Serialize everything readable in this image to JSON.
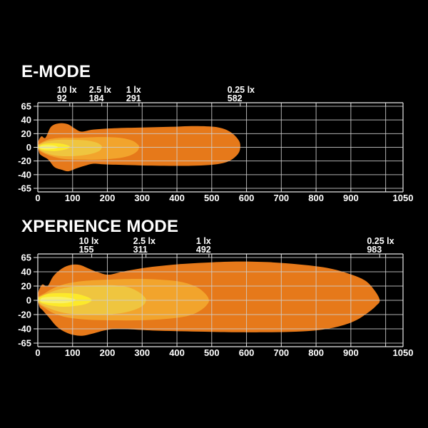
{
  "page": {
    "background": "#000000",
    "text_color": "#ffffff"
  },
  "chart_data": [
    {
      "type": "area",
      "title": "E-MODE",
      "xlabel": "",
      "ylabel": "",
      "xlim": [
        0,
        1050
      ],
      "x_tick_values": [
        0,
        100,
        200,
        300,
        400,
        500,
        600,
        700,
        800,
        900,
        1050
      ],
      "x_tick_labels": [
        "0",
        "100",
        "200",
        "300",
        "400",
        "500",
        "600",
        "700",
        "800",
        "900",
        "1050"
      ],
      "x_grid_values": [
        0,
        100,
        200,
        300,
        400,
        500,
        600,
        700,
        800,
        900,
        1000,
        1050
      ],
      "y_tick_values": [
        65,
        40,
        20,
        0,
        -20,
        -40,
        -65
      ],
      "y_tick_labels": [
        "65",
        "40",
        "20",
        "0",
        "-20",
        "-40",
        "-65"
      ],
      "grid": true,
      "grid_color": "#cfcfcf",
      "frame_color": "#e8e8e8",
      "annotations": [
        {
          "label": "10 lx",
          "value": "92",
          "m": 92
        },
        {
          "label": "2.5 lx",
          "value": "184",
          "m": 184
        },
        {
          "label": "1 lx",
          "value": "291",
          "m": 291
        },
        {
          "label": "0.25 lx",
          "value": "582",
          "m": 582
        }
      ],
      "contours": [
        {
          "lux": "0.25 lx",
          "end_m": 582,
          "color": "#E6791A",
          "points": [
            [
              0,
              6
            ],
            [
              10,
              16
            ],
            [
              22,
              14
            ],
            [
              38,
              30
            ],
            [
              60,
              35
            ],
            [
              85,
              34
            ],
            [
              105,
              28
            ],
            [
              125,
              23
            ],
            [
              160,
              26
            ],
            [
              220,
              28
            ],
            [
              300,
              29
            ],
            [
              380,
              30
            ],
            [
              460,
              31
            ],
            [
              520,
              29
            ],
            [
              555,
              22
            ],
            [
              578,
              10
            ],
            [
              582,
              0
            ],
            [
              575,
              -10
            ],
            [
              550,
              -20
            ],
            [
              510,
              -25
            ],
            [
              440,
              -27
            ],
            [
              350,
              -27
            ],
            [
              260,
              -26
            ],
            [
              195,
              -25
            ],
            [
              160,
              -24
            ],
            [
              135,
              -27
            ],
            [
              110,
              -31
            ],
            [
              88,
              -35
            ],
            [
              70,
              -33
            ],
            [
              48,
              -29
            ],
            [
              30,
              -18
            ],
            [
              14,
              -13
            ],
            [
              4,
              -8
            ]
          ]
        },
        {
          "lux": "1 lx",
          "end_m": 291,
          "color": "#F2A42C",
          "points": [
            [
              0,
              3
            ],
            [
              15,
              8
            ],
            [
              35,
              12
            ],
            [
              70,
              14
            ],
            [
              120,
              14
            ],
            [
              180,
              15
            ],
            [
              235,
              14
            ],
            [
              270,
              10
            ],
            [
              288,
              4
            ],
            [
              291,
              0
            ],
            [
              285,
              -6
            ],
            [
              265,
              -12
            ],
            [
              230,
              -16
            ],
            [
              175,
              -18
            ],
            [
              120,
              -18
            ],
            [
              75,
              -17
            ],
            [
              40,
              -13
            ],
            [
              15,
              -8
            ],
            [
              4,
              -4
            ]
          ]
        },
        {
          "lux": "2.5 lx",
          "end_m": 184,
          "color": "#EFC53F",
          "points": [
            [
              0,
              2
            ],
            [
              12,
              6
            ],
            [
              30,
              9
            ],
            [
              60,
              11
            ],
            [
              100,
              11
            ],
            [
              140,
              10
            ],
            [
              168,
              7
            ],
            [
              182,
              3
            ],
            [
              184,
              0
            ],
            [
              178,
              -5
            ],
            [
              158,
              -9
            ],
            [
              125,
              -12
            ],
            [
              85,
              -13
            ],
            [
              50,
              -12
            ],
            [
              22,
              -8
            ],
            [
              6,
              -4
            ]
          ]
        },
        {
          "lux": "10 lx",
          "end_m": 92,
          "color": "#FCE92B",
          "points": [
            [
              2,
              1
            ],
            [
              10,
              4
            ],
            [
              25,
              5.5
            ],
            [
              45,
              6
            ],
            [
              65,
              5.5
            ],
            [
              80,
              4
            ],
            [
              90,
              2
            ],
            [
              92,
              0
            ],
            [
              86,
              -2
            ],
            [
              72,
              -4
            ],
            [
              50,
              -5.5
            ],
            [
              28,
              -5
            ],
            [
              12,
              -4
            ],
            [
              3,
              -1.5
            ]
          ]
        },
        {
          "lux": "hotspot",
          "end_m": 58,
          "color": "#F9F167",
          "points": [
            [
              8,
              2
            ],
            [
              20,
              3
            ],
            [
              38,
              3
            ],
            [
              52,
              2
            ],
            [
              58,
              0
            ],
            [
              50,
              -2
            ],
            [
              30,
              -3
            ],
            [
              14,
              -2.5
            ],
            [
              6,
              -1
            ]
          ]
        }
      ]
    },
    {
      "type": "area",
      "title": "XPERIENCE MODE",
      "xlabel": "",
      "ylabel": "",
      "xlim": [
        0,
        1050
      ],
      "x_tick_values": [
        0,
        100,
        200,
        300,
        400,
        500,
        600,
        700,
        800,
        900,
        1050
      ],
      "x_tick_labels": [
        "0",
        "100",
        "200",
        "300",
        "400",
        "500",
        "600",
        "700",
        "800",
        "900",
        "1050"
      ],
      "x_grid_values": [
        0,
        100,
        200,
        300,
        400,
        500,
        600,
        700,
        800,
        900,
        1000,
        1050
      ],
      "y_tick_values": [
        65,
        40,
        20,
        0,
        -20,
        -40,
        -65
      ],
      "y_tick_labels": [
        "65",
        "40",
        "20",
        "0",
        "-20",
        "-40",
        "-65"
      ],
      "grid": true,
      "grid_color": "#cfcfcf",
      "frame_color": "#e8e8e8",
      "annotations": [
        {
          "label": "10 lx",
          "value": "155",
          "m": 155
        },
        {
          "label": "2.5 lx",
          "value": "311",
          "m": 311
        },
        {
          "label": "1 lx",
          "value": "492",
          "m": 492
        },
        {
          "label": "0.25 lx",
          "value": "983",
          "m": 983
        }
      ],
      "contours": [
        {
          "lux": "0.25 lx",
          "end_m": 983,
          "color": "#E6791A",
          "points": [
            [
              0,
              8
            ],
            [
              12,
              22
            ],
            [
              28,
              20
            ],
            [
              45,
              34
            ],
            [
              70,
              46
            ],
            [
              95,
              52
            ],
            [
              120,
              52
            ],
            [
              145,
              46
            ],
            [
              175,
              39
            ],
            [
              205,
              36
            ],
            [
              250,
              41
            ],
            [
              320,
              48
            ],
            [
              400,
              53
            ],
            [
              480,
              56
            ],
            [
              570,
              58
            ],
            [
              660,
              57
            ],
            [
              750,
              53
            ],
            [
              830,
              47
            ],
            [
              890,
              38
            ],
            [
              940,
              28
            ],
            [
              968,
              14
            ],
            [
              983,
              0
            ],
            [
              972,
              -8
            ],
            [
              950,
              -17
            ],
            [
              915,
              -28
            ],
            [
              870,
              -36
            ],
            [
              810,
              -42
            ],
            [
              740,
              -45
            ],
            [
              660,
              -46
            ],
            [
              570,
              -46
            ],
            [
              480,
              -45
            ],
            [
              400,
              -44
            ],
            [
              330,
              -43
            ],
            [
              270,
              -41
            ],
            [
              225,
              -40
            ],
            [
              190,
              -43
            ],
            [
              160,
              -48
            ],
            [
              130,
              -52
            ],
            [
              105,
              -51
            ],
            [
              80,
              -46
            ],
            [
              55,
              -37
            ],
            [
              32,
              -24
            ],
            [
              14,
              -14
            ],
            [
              4,
              -8
            ]
          ]
        },
        {
          "lux": "1 lx",
          "end_m": 492,
          "color": "#F2A42C",
          "points": [
            [
              0,
              4
            ],
            [
              20,
              10
            ],
            [
              45,
              17
            ],
            [
              80,
              23
            ],
            [
              130,
              27
            ],
            [
              200,
              29
            ],
            [
              280,
              30
            ],
            [
              350,
              29
            ],
            [
              410,
              26
            ],
            [
              455,
              19
            ],
            [
              482,
              9
            ],
            [
              492,
              0
            ],
            [
              485,
              -7
            ],
            [
              465,
              -15
            ],
            [
              430,
              -22
            ],
            [
              370,
              -26
            ],
            [
              290,
              -28
            ],
            [
              210,
              -28
            ],
            [
              140,
              -27
            ],
            [
              85,
              -24
            ],
            [
              45,
              -18
            ],
            [
              18,
              -10
            ],
            [
              4,
              -5
            ]
          ]
        },
        {
          "lux": "2.5 lx",
          "end_m": 311,
          "color": "#EFC53F",
          "points": [
            [
              0,
              3
            ],
            [
              15,
              7
            ],
            [
              40,
              12
            ],
            [
              75,
              17
            ],
            [
              120,
              20
            ],
            [
              170,
              21
            ],
            [
              220,
              21
            ],
            [
              262,
              18
            ],
            [
              292,
              11
            ],
            [
              308,
              4
            ],
            [
              311,
              0
            ],
            [
              305,
              -6
            ],
            [
              285,
              -12
            ],
            [
              250,
              -17
            ],
            [
              200,
              -20
            ],
            [
              145,
              -20
            ],
            [
              95,
              -19
            ],
            [
              55,
              -15
            ],
            [
              22,
              -9
            ],
            [
              5,
              -4
            ]
          ]
        },
        {
          "lux": "10 lx",
          "end_m": 155,
          "color": "#FCE92B",
          "points": [
            [
              2,
              2
            ],
            [
              12,
              6
            ],
            [
              30,
              9
            ],
            [
              55,
              10
            ],
            [
              85,
              10
            ],
            [
              112,
              9
            ],
            [
              135,
              6
            ],
            [
              150,
              3
            ],
            [
              155,
              0
            ],
            [
              148,
              -3
            ],
            [
              132,
              -6
            ],
            [
              105,
              -8
            ],
            [
              75,
              -9
            ],
            [
              48,
              -8
            ],
            [
              25,
              -6
            ],
            [
              8,
              -3
            ]
          ]
        },
        {
          "lux": "hotspot",
          "end_m": 108,
          "color": "#F9F167",
          "points": [
            [
              10,
              3
            ],
            [
              25,
              4.5
            ],
            [
              50,
              5
            ],
            [
              75,
              4.5
            ],
            [
              95,
              3
            ],
            [
              108,
              1
            ],
            [
              100,
              -2
            ],
            [
              75,
              -4
            ],
            [
              45,
              -4
            ],
            [
              20,
              -3
            ],
            [
              8,
              -1.5
            ]
          ]
        }
      ]
    }
  ]
}
